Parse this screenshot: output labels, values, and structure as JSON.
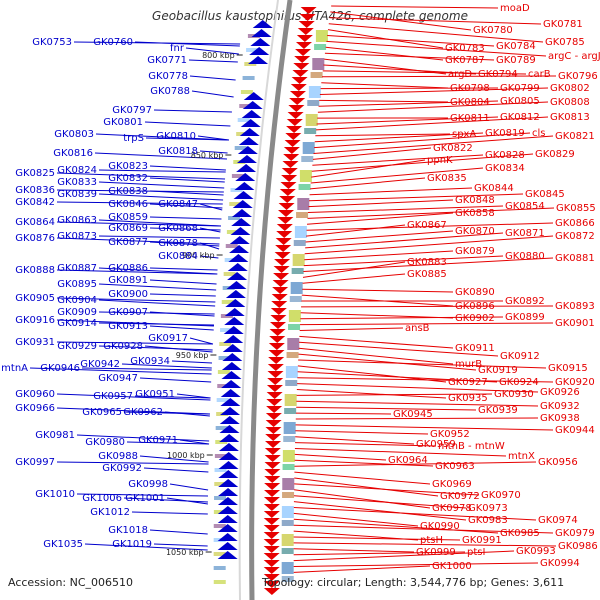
{
  "title": "Geobacillus kaustophilus HTA426, complete genome",
  "accession": "Accession: NC_006510",
  "topology": "Topology: circular; Length: 3,544,776 bp; Genes: 3,611",
  "colors": {
    "left_genes": "#0000cc",
    "right_genes": "#e60000",
    "backbone": "#888888"
  },
  "kbp_markers": [
    {
      "label": "800 kbp"
    },
    {
      "label": "850 kbp"
    },
    {
      "label": "900 kbp"
    },
    {
      "label": "950 kbp"
    },
    {
      "label": "1000 kbp"
    },
    {
      "label": "1050 kbp"
    }
  ],
  "left_labels": [
    {
      "text": "GK0753"
    },
    {
      "text": "GK0760"
    },
    {
      "text": "fnr"
    },
    {
      "text": "GK0771"
    },
    {
      "text": "GK0778"
    },
    {
      "text": "GK0788"
    },
    {
      "text": "GK0797"
    },
    {
      "text": "GK0801"
    },
    {
      "text": "GK0803"
    },
    {
      "text": "trpS"
    },
    {
      "text": "GK0810"
    },
    {
      "text": "GK0816"
    },
    {
      "text": "GK0818"
    },
    {
      "text": "GK0823"
    },
    {
      "text": "GK0825"
    },
    {
      "text": "GK0824"
    },
    {
      "text": "GK0832"
    },
    {
      "text": "GK0833"
    },
    {
      "text": "GK0836"
    },
    {
      "text": "GK0838"
    },
    {
      "text": "GK0839"
    },
    {
      "text": "GK0842"
    },
    {
      "text": "GK0846"
    },
    {
      "text": "GK0847"
    },
    {
      "text": "GK0859"
    },
    {
      "text": "GK0864"
    },
    {
      "text": "GK0863"
    },
    {
      "text": "GK0869"
    },
    {
      "text": "GK0868"
    },
    {
      "text": "GK0876"
    },
    {
      "text": "GK0873"
    },
    {
      "text": "GK0877"
    },
    {
      "text": "GK0878"
    },
    {
      "text": "GK0884"
    },
    {
      "text": "GK0888"
    },
    {
      "text": "GK0887"
    },
    {
      "text": "GK0886"
    },
    {
      "text": "GK0891"
    },
    {
      "text": "GK0895"
    },
    {
      "text": "GK0900"
    },
    {
      "text": "GK0905"
    },
    {
      "text": "GK0904"
    },
    {
      "text": "GK0909"
    },
    {
      "text": "GK0907"
    },
    {
      "text": "GK0916"
    },
    {
      "text": "GK0914"
    },
    {
      "text": "GK0913"
    },
    {
      "text": "GK0917"
    },
    {
      "text": "GK0931"
    },
    {
      "text": "GK0929"
    },
    {
      "text": "GK0928"
    },
    {
      "text": "GK0934"
    },
    {
      "text": "GK0942"
    },
    {
      "text": "mtnA"
    },
    {
      "text": "GK0946"
    },
    {
      "text": "GK0947"
    },
    {
      "text": "GK0960"
    },
    {
      "text": "GK0957"
    },
    {
      "text": "GK0951"
    },
    {
      "text": "GK0966"
    },
    {
      "text": "GK0965"
    },
    {
      "text": "GK0962"
    },
    {
      "text": "GK0981"
    },
    {
      "text": "GK0980"
    },
    {
      "text": "GK0971"
    },
    {
      "text": "GK0988"
    },
    {
      "text": "GK0997"
    },
    {
      "text": "GK0992"
    },
    {
      "text": "GK0998"
    },
    {
      "text": "GK1010"
    },
    {
      "text": "GK1006"
    },
    {
      "text": "GK1001"
    },
    {
      "text": "GK1012"
    },
    {
      "text": "GK1018"
    },
    {
      "text": "GK1035"
    },
    {
      "text": "GK1019"
    }
  ],
  "right_labels": [
    {
      "text": "moaD"
    },
    {
      "text": "GK0780"
    },
    {
      "text": "GK0781"
    },
    {
      "text": "GK0785"
    },
    {
      "text": "GK0783"
    },
    {
      "text": "GK0784"
    },
    {
      "text": "argC - argJ"
    },
    {
      "text": "GK0787"
    },
    {
      "text": "GK0789"
    },
    {
      "text": "argD"
    },
    {
      "text": "GK0794"
    },
    {
      "text": "carB"
    },
    {
      "text": "GK0796"
    },
    {
      "text": "GK0798"
    },
    {
      "text": "GK0799"
    },
    {
      "text": "GK0802"
    },
    {
      "text": "GK0804"
    },
    {
      "text": "GK0805"
    },
    {
      "text": "GK0808"
    },
    {
      "text": "GK0811"
    },
    {
      "text": "GK0812"
    },
    {
      "text": "GK0813"
    },
    {
      "text": "spxA"
    },
    {
      "text": "GK0819"
    },
    {
      "text": "cls"
    },
    {
      "text": "GK0821"
    },
    {
      "text": "GK0822"
    },
    {
      "text": "GK0828"
    },
    {
      "text": "GK0829"
    },
    {
      "text": "ppnK"
    },
    {
      "text": "GK0834"
    },
    {
      "text": "GK0835"
    },
    {
      "text": "GK0844"
    },
    {
      "text": "GK0845"
    },
    {
      "text": "GK0848"
    },
    {
      "text": "GK0854"
    },
    {
      "text": "GK0855"
    },
    {
      "text": "GK0858"
    },
    {
      "text": "GK0866"
    },
    {
      "text": "GK0867"
    },
    {
      "text": "GK0870"
    },
    {
      "text": "GK0871"
    },
    {
      "text": "GK0872"
    },
    {
      "text": "GK0879"
    },
    {
      "text": "GK0880"
    },
    {
      "text": "GK0881"
    },
    {
      "text": "GK0883"
    },
    {
      "text": "GK0885"
    },
    {
      "text": "GK0890"
    },
    {
      "text": "GK0896"
    },
    {
      "text": "GK0892"
    },
    {
      "text": "GK0893"
    },
    {
      "text": "GK0902"
    },
    {
      "text": "GK0899"
    },
    {
      "text": "GK0901"
    },
    {
      "text": "ansB"
    },
    {
      "text": "GK0911"
    },
    {
      "text": "GK0912"
    },
    {
      "text": "murB"
    },
    {
      "text": "GK0919"
    },
    {
      "text": "GK0915"
    },
    {
      "text": "GK0927"
    },
    {
      "text": "GK0924"
    },
    {
      "text": "GK0920"
    },
    {
      "text": "GK0926"
    },
    {
      "text": "GK0935"
    },
    {
      "text": "GK0930"
    },
    {
      "text": "GK0932"
    },
    {
      "text": "GK0939"
    },
    {
      "text": "GK0945"
    },
    {
      "text": "GK0938"
    },
    {
      "text": "GK0944"
    },
    {
      "text": "GK0952"
    },
    {
      "text": "GK0959"
    },
    {
      "text": "mtnB - mtnW"
    },
    {
      "text": "mtnX"
    },
    {
      "text": "GK0964"
    },
    {
      "text": "GK0963"
    },
    {
      "text": "GK0956"
    },
    {
      "text": "GK0969"
    },
    {
      "text": "GK0972"
    },
    {
      "text": "GK0970"
    },
    {
      "text": "GK0978"
    },
    {
      "text": "GK0973"
    },
    {
      "text": "GK0983"
    },
    {
      "text": "GK0974"
    },
    {
      "text": "GK0990"
    },
    {
      "text": "GK0985"
    },
    {
      "text": "GK0979"
    },
    {
      "text": "ptsH"
    },
    {
      "text": "GK0991"
    },
    {
      "text": "GK0986"
    },
    {
      "text": "GK0999"
    },
    {
      "text": "ptsI"
    },
    {
      "text": "GK0993"
    },
    {
      "text": "GK0994"
    },
    {
      "text": "GK1000"
    }
  ]
}
